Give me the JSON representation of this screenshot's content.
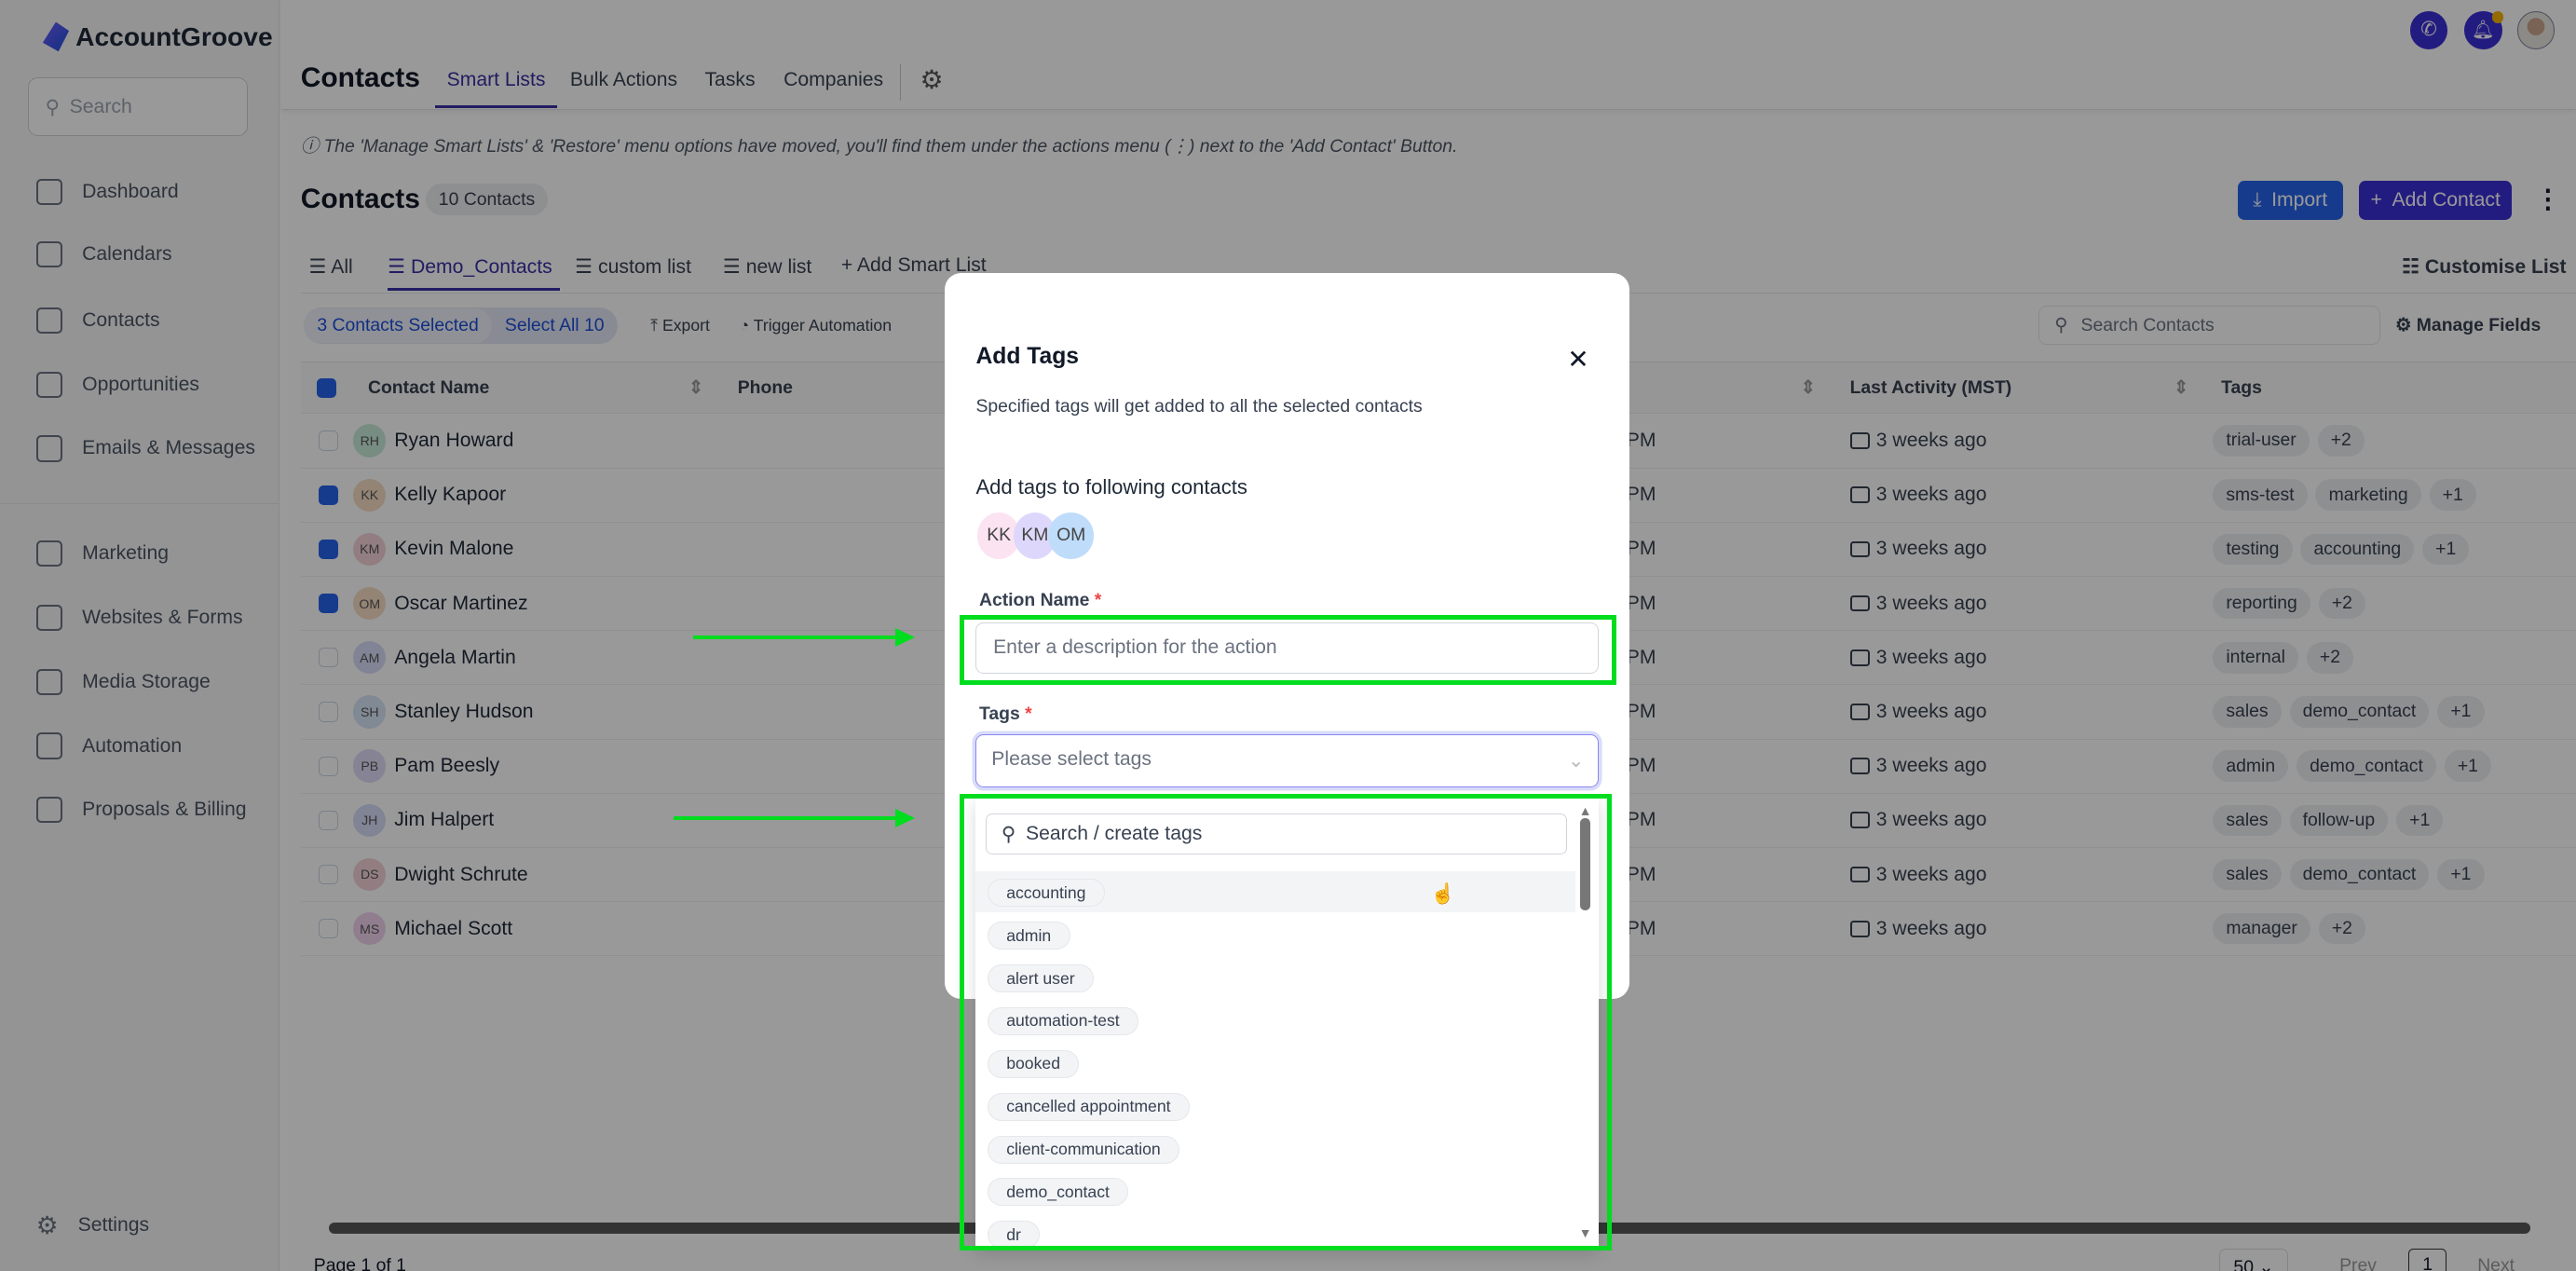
{
  "brand": "AccountGroove",
  "sidebar": {
    "search_placeholder": "Search",
    "items": [
      {
        "label": "Dashboard"
      },
      {
        "label": "Calendars"
      },
      {
        "label": "Contacts"
      },
      {
        "label": "Opportunities"
      },
      {
        "label": "Emails & Messages"
      },
      {
        "label": "Marketing"
      },
      {
        "label": "Websites & Forms"
      },
      {
        "label": "Media Storage"
      },
      {
        "label": "Automation"
      },
      {
        "label": "Proposals & Billing"
      }
    ],
    "settings": "Settings"
  },
  "header": {
    "title": "Contacts",
    "tabs": [
      "Smart Lists",
      "Bulk Actions",
      "Tasks",
      "Companies"
    ],
    "active_tab": "Smart Lists"
  },
  "notice": "ⓘ The 'Manage Smart Lists' & 'Restore' menu options have moved, you'll find them under the actions menu (⋮) next to the 'Add Contact' Button.",
  "contacts": {
    "title": "Contacts",
    "count": "10 Contacts",
    "import": "Import",
    "add_contact": "Add Contact"
  },
  "lists": {
    "tabs": [
      "All",
      "Demo_Contacts",
      "custom list",
      "new list"
    ],
    "active": "Demo_Contacts",
    "add": "Add Smart List",
    "customise": "Customise List"
  },
  "toolbar": {
    "selected": "3 Contacts Selected",
    "select_all": "Select All 10",
    "export": "Export",
    "trigger": "Trigger Automation",
    "search_placeholder": "Search Contacts",
    "manage_fields": "Manage Fields"
  },
  "table": {
    "columns": [
      "Contact Name",
      "Phone",
      "Last Activity (MST)",
      "Tags"
    ],
    "rows": [
      {
        "initials": "RH",
        "name": "Ryan Howard",
        "checked": false,
        "time": "PM",
        "activity": "3 weeks ago",
        "tags": [
          "trial-user",
          "+2"
        ],
        "color": "#c9ecd9"
      },
      {
        "initials": "KK",
        "name": "Kelly Kapoor",
        "checked": true,
        "time": "PM",
        "activity": "3 weeks ago",
        "tags": [
          "sms-test",
          "marketing",
          "+1"
        ],
        "color": "#f6dcc3"
      },
      {
        "initials": "KM",
        "name": "Kevin Malone",
        "checked": true,
        "time": "PM",
        "activity": "3 weeks ago",
        "tags": [
          "testing",
          "accounting",
          "+1"
        ],
        "color": "#f3d3d8"
      },
      {
        "initials": "OM",
        "name": "Oscar Martinez",
        "checked": true,
        "time": "PM",
        "activity": "3 weeks ago",
        "tags": [
          "reporting",
          "+2"
        ],
        "color": "#f6dcc3"
      },
      {
        "initials": "AM",
        "name": "Angela Martin",
        "checked": false,
        "time": "PM",
        "activity": "3 weeks ago",
        "tags": [
          "internal",
          "+2"
        ],
        "color": "#d8dcf7"
      },
      {
        "initials": "SH",
        "name": "Stanley Hudson",
        "checked": false,
        "time": "PM",
        "activity": "3 weeks ago",
        "tags": [
          "sales",
          "demo_contact",
          "+1"
        ],
        "color": "#d5e5f7"
      },
      {
        "initials": "PB",
        "name": "Pam Beesly",
        "checked": false,
        "time": "PM",
        "activity": "3 weeks ago",
        "tags": [
          "admin",
          "demo_contact",
          "+1"
        ],
        "color": "#e0dcf7"
      },
      {
        "initials": "JH",
        "name": "Jim Halpert",
        "checked": false,
        "time": "PM",
        "activity": "3 weeks ago",
        "tags": [
          "sales",
          "follow-up",
          "+1"
        ],
        "color": "#d8dcf7"
      },
      {
        "initials": "DS",
        "name": "Dwight Schrute",
        "checked": false,
        "time": "PM",
        "activity": "3 weeks ago",
        "tags": [
          "sales",
          "demo_contact",
          "+1"
        ],
        "color": "#f3d3d8"
      },
      {
        "initials": "MS",
        "name": "Michael Scott",
        "checked": false,
        "time": "PM",
        "activity": "3 weeks ago",
        "tags": [
          "manager",
          "+2"
        ],
        "color": "#f1d3ee"
      }
    ]
  },
  "footer": {
    "page": "Page 1 of 1",
    "per_page": "50",
    "prev": "Prev",
    "current": "1",
    "next": "Next"
  },
  "modal": {
    "title": "Add Tags",
    "subtitle": "Specified tags will get added to all the selected contacts",
    "contacts_label": "Add tags to following contacts",
    "avatars": [
      "KK",
      "KM",
      "OM"
    ],
    "action_label": "Action Name",
    "action_placeholder": "Enter a description for the action",
    "tags_label": "Tags",
    "tags_placeholder": "Please select tags",
    "required": "*"
  },
  "dropdown": {
    "search_placeholder": "Search / create tags",
    "options": [
      "accounting",
      "admin",
      "alert user",
      "automation-test",
      "booked",
      "cancelled appointment",
      "client-communication",
      "demo_contact",
      "dr"
    ]
  },
  "colors": {
    "accent": "#3730a3",
    "import": "#2563eb",
    "highlight": "#00dd1f"
  }
}
